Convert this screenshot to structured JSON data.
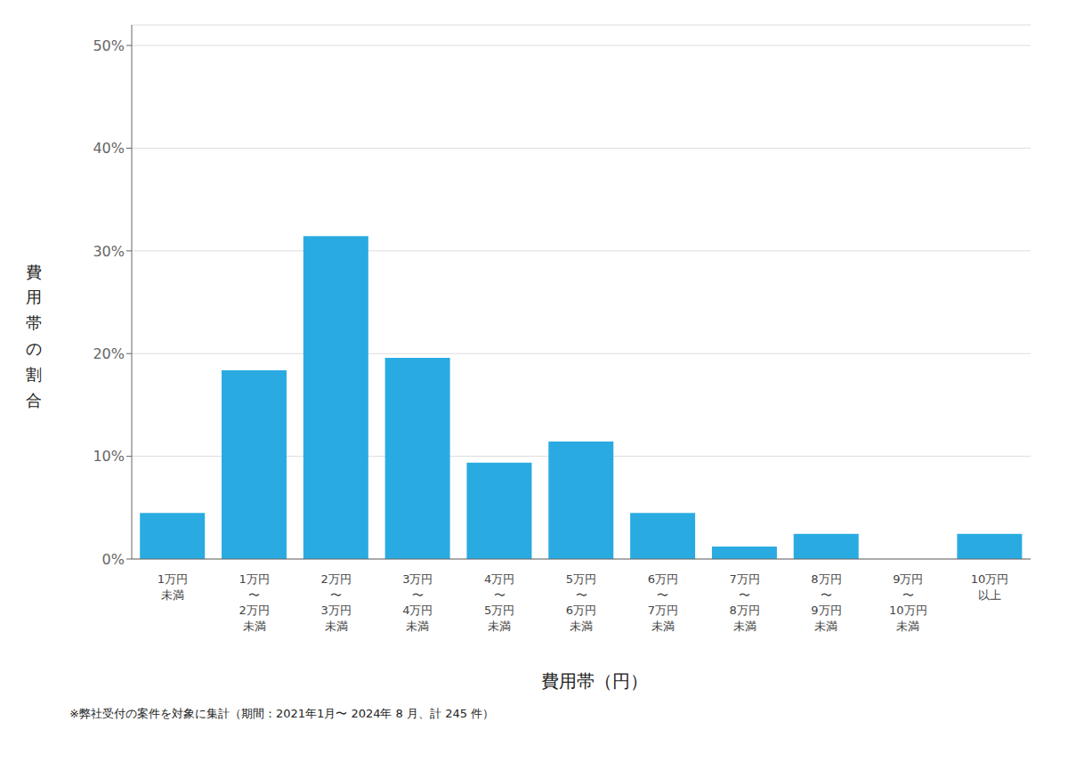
{
  "chart_data": {
    "type": "bar",
    "categories": [
      "1万円\n未満",
      "1万円\n〜\n2万円\n未満",
      "2万円\n〜\n3万円\n未満",
      "3万円\n〜\n4万円\n未満",
      "4万円\n〜\n5万円\n未満",
      "5万円\n〜\n6万円\n未満",
      "6万円\n〜\n7万円\n未満",
      "7万円\n〜\n8万円\n未満",
      "8万円\n〜\n9万円\n未満",
      "9万円\n〜\n10万円\n未満",
      "10万円\n以上"
    ],
    "values": [
      4.49,
      18.37,
      31.43,
      19.59,
      9.39,
      11.43,
      4.49,
      1.22,
      2.45,
      0.0,
      2.45
    ],
    "color": "#29ABE2",
    "xlabel": "費用帯（円）",
    "ylabel": "費\n用\n帯\nの\n割\n合",
    "annotations": [
      "※弊社受付の案件を対象に集計（期間：2021年1月〜 2024年 8 月、計 245 件）"
    ],
    "ylim": [
      0,
      52
    ],
    "yticks": [
      {
        "value": 0,
        "label": "0%"
      },
      {
        "value": 10,
        "label": "10%"
      },
      {
        "value": 20,
        "label": "20%"
      },
      {
        "value": 30,
        "label": "30%"
      },
      {
        "value": 40,
        "label": "40%"
      },
      {
        "value": 50,
        "label": "50%"
      }
    ],
    "grid": true
  }
}
